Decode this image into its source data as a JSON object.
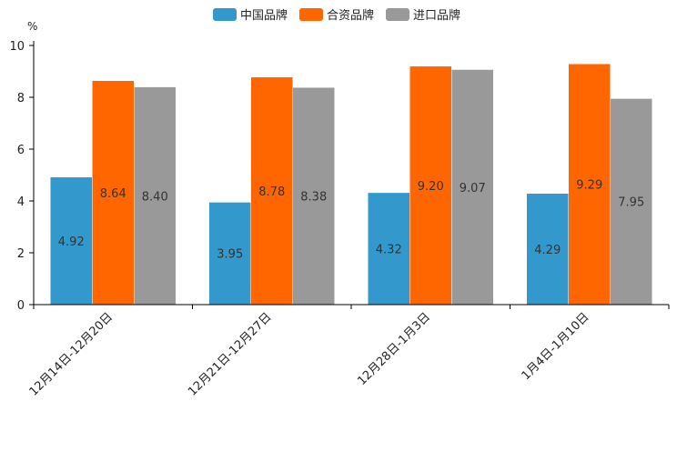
{
  "chart_data": {
    "type": "bar",
    "unit": "%",
    "categories": [
      "12月14日-12月20日",
      "12月21日-12月27日",
      "12月28日-1月3日",
      "1月4日-1月10日"
    ],
    "series": [
      {
        "name": "中国品牌",
        "color": "#3399cc",
        "values": [
          4.92,
          3.95,
          4.32,
          4.29
        ]
      },
      {
        "name": "合资品牌",
        "color": "#ff6600",
        "values": [
          8.64,
          8.78,
          9.2,
          9.29
        ]
      },
      {
        "name": "进口品牌",
        "color": "#999999",
        "values": [
          8.4,
          8.38,
          9.07,
          7.95
        ]
      }
    ],
    "ylim": [
      0,
      10
    ],
    "yticks": [
      0,
      2,
      4,
      6,
      8,
      10
    ],
    "legend_position": "top-center",
    "grid": false
  }
}
